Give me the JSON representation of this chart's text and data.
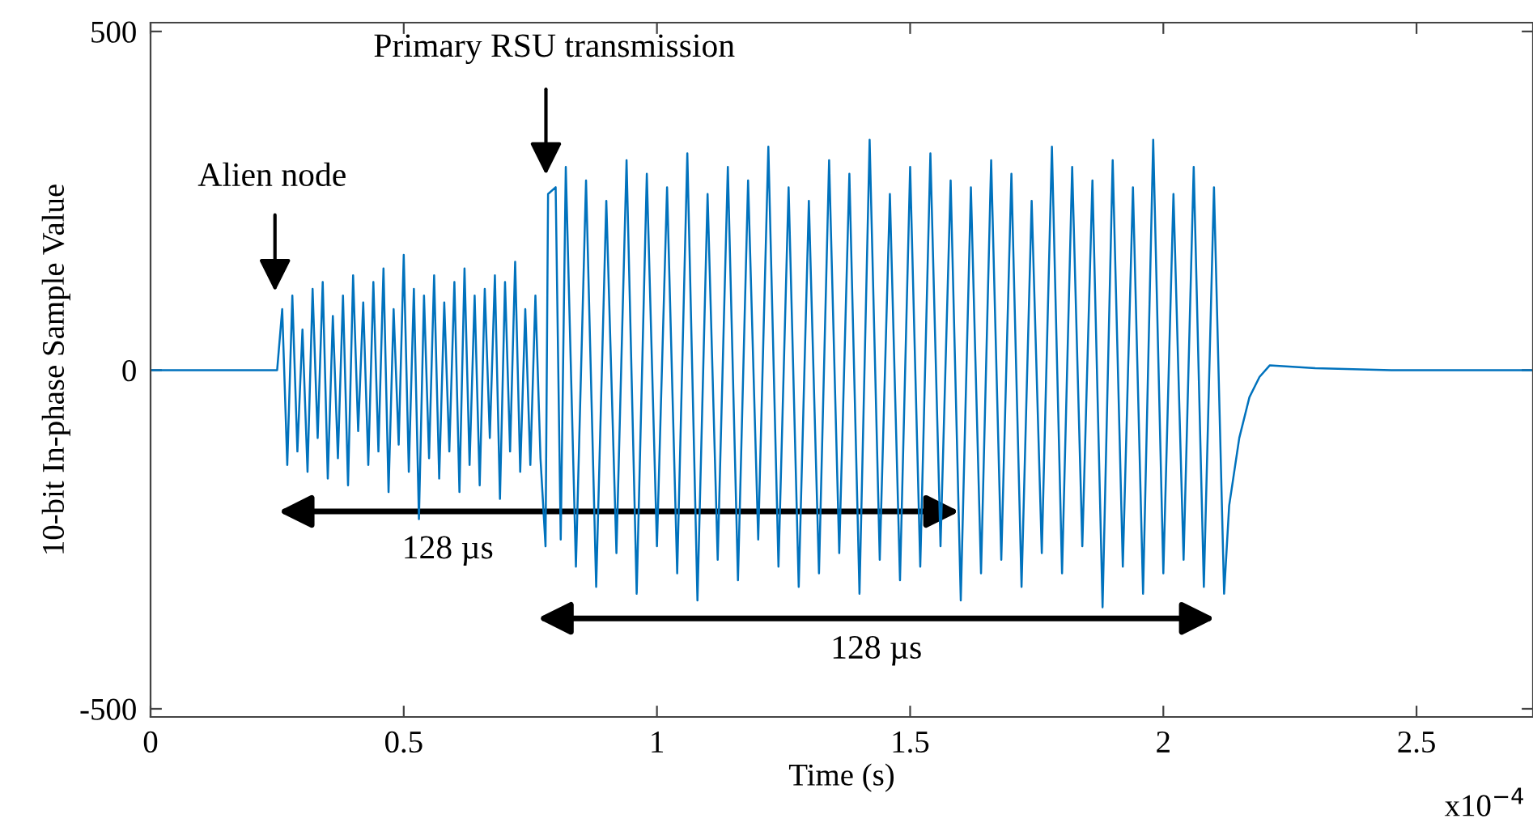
{
  "chart_data": {
    "type": "line",
    "xlabel": "Time (s)",
    "ylabel": "10-bit In-phase Sample Value",
    "xlim": [
      0,
      2.73
    ],
    "ylim": [
      -512,
      513
    ],
    "xticks": [
      0,
      0.5,
      1,
      1.5,
      2,
      2.5
    ],
    "yticks": [
      {
        "value": -500,
        "label": "-500"
      },
      0,
      500
    ],
    "grid": false,
    "marker": "none",
    "line_style": "solid",
    "series": [
      {
        "color": "#0072bd",
        "x": [
          0,
          0.24,
          0.25,
          0.26,
          0.27,
          0.28,
          0.29,
          0.3,
          0.31,
          0.32,
          0.33,
          0.34,
          0.35,
          0.36,
          0.37,
          0.38,
          0.39,
          0.4,
          0.41,
          0.42,
          0.43,
          0.44,
          0.45,
          0.46,
          0.47,
          0.48,
          0.49,
          0.5,
          0.51,
          0.52,
          0.53,
          0.54,
          0.55,
          0.56,
          0.57,
          0.58,
          0.59,
          0.6,
          0.61,
          0.62,
          0.63,
          0.64,
          0.65,
          0.66,
          0.67,
          0.68,
          0.69,
          0.7,
          0.71,
          0.72,
          0.73,
          0.74,
          0.75,
          0.76,
          0.77,
          0.78,
          0.785,
          0.8,
          0.81,
          0.82,
          0.84,
          0.86,
          0.88,
          0.9,
          0.92,
          0.94,
          0.96,
          0.98,
          1.0,
          1.02,
          1.04,
          1.06,
          1.08,
          1.1,
          1.12,
          1.14,
          1.16,
          1.18,
          1.2,
          1.22,
          1.24,
          1.26,
          1.28,
          1.3,
          1.32,
          1.34,
          1.36,
          1.38,
          1.4,
          1.42,
          1.44,
          1.46,
          1.48,
          1.5,
          1.52,
          1.54,
          1.56,
          1.58,
          1.6,
          1.62,
          1.64,
          1.66,
          1.68,
          1.7,
          1.72,
          1.74,
          1.76,
          1.78,
          1.8,
          1.82,
          1.84,
          1.86,
          1.88,
          1.9,
          1.92,
          1.94,
          1.96,
          1.98,
          2.0,
          2.02,
          2.04,
          2.06,
          2.08,
          2.1,
          2.12,
          2.13,
          2.15,
          2.17,
          2.19,
          2.21,
          2.3,
          2.45,
          2.73
        ],
        "values": [
          0,
          0,
          0,
          90,
          -140,
          110,
          -120,
          60,
          -150,
          120,
          -100,
          130,
          -160,
          80,
          -130,
          110,
          -170,
          140,
          -90,
          100,
          -140,
          130,
          -120,
          150,
          -180,
          90,
          -110,
          170,
          -150,
          120,
          -220,
          110,
          -130,
          140,
          -160,
          100,
          -120,
          130,
          -180,
          150,
          -140,
          110,
          -170,
          120,
          -100,
          140,
          -190,
          130,
          -120,
          160,
          -150,
          90,
          -140,
          110,
          -130,
          -260,
          260,
          270,
          -250,
          300,
          -290,
          280,
          -320,
          250,
          -270,
          310,
          -330,
          290,
          -260,
          270,
          -300,
          320,
          -340,
          260,
          -280,
          300,
          -310,
          280,
          -250,
          330,
          -290,
          270,
          -320,
          250,
          -300,
          310,
          -270,
          290,
          -330,
          340,
          -280,
          260,
          -310,
          300,
          -290,
          320,
          -260,
          280,
          -340,
          270,
          -300,
          310,
          -280,
          290,
          -320,
          250,
          -270,
          330,
          -300,
          300,
          -260,
          280,
          -350,
          310,
          -290,
          270,
          -330,
          340,
          -300,
          260,
          -280,
          300,
          -320,
          270,
          -330,
          -200,
          -100,
          -40,
          -10,
          7,
          3,
          0,
          0
        ]
      }
    ],
    "annotations": [
      "Alien node",
      "Primary RSU transmission",
      "128 µs",
      "128 µs",
      "x10$^{−4}$"
    ]
  }
}
